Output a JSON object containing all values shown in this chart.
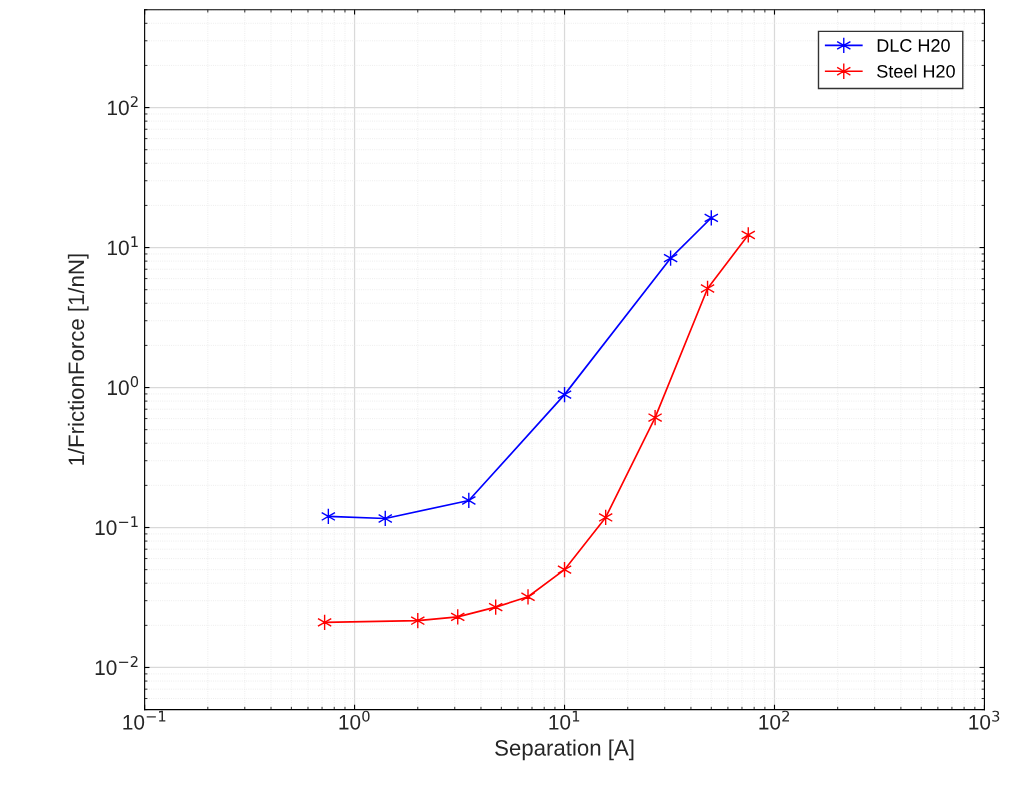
{
  "chart_data": {
    "type": "line",
    "xlabel": "Separation [A]",
    "ylabel": "1/FrictionForce [1/nN]",
    "log": "xy",
    "grid": true,
    "legend": "top right",
    "marker": "cross",
    "line_style": "solid",
    "xlim": [
      0.1,
      1000
    ],
    "ylim": [
      0.005,
      500
    ],
    "xticks": [
      {
        "value": 0.1,
        "label": "10$^{−1}$"
      },
      {
        "value": 1,
        "label": "10$^{0}$"
      },
      {
        "value": 10,
        "label": "10$^{1}$"
      },
      {
        "value": 100,
        "label": "10$^{2}$"
      },
      {
        "value": 1000,
        "label": "10$^{3}$"
      }
    ],
    "yticks": [
      {
        "value": 0.01,
        "label": "10$^{−2}$"
      },
      {
        "value": 0.1,
        "label": "10$^{−1}$"
      },
      {
        "value": 1,
        "label": "10$^{0}$"
      },
      {
        "value": 10,
        "label": "10$^{1}$"
      },
      {
        "value": 100,
        "label": "10$^{2}$"
      }
    ],
    "series": [
      {
        "name": "DLC H20",
        "color": "#0000ff",
        "x": [
          0.75,
          1.4,
          3.5,
          10,
          32,
          50
        ],
        "values": [
          0.12,
          0.116,
          0.156,
          0.89,
          8.4,
          16.3
        ]
      },
      {
        "name": "Steel H20",
        "color": "#ff0000",
        "x": [
          0.72,
          2.0,
          3.1,
          4.7,
          6.7,
          10,
          15.7,
          27,
          48,
          75
        ],
        "values": [
          0.021,
          0.0216,
          0.023,
          0.027,
          0.032,
          0.05,
          0.118,
          0.61,
          5.1,
          12.3
        ]
      }
    ]
  }
}
